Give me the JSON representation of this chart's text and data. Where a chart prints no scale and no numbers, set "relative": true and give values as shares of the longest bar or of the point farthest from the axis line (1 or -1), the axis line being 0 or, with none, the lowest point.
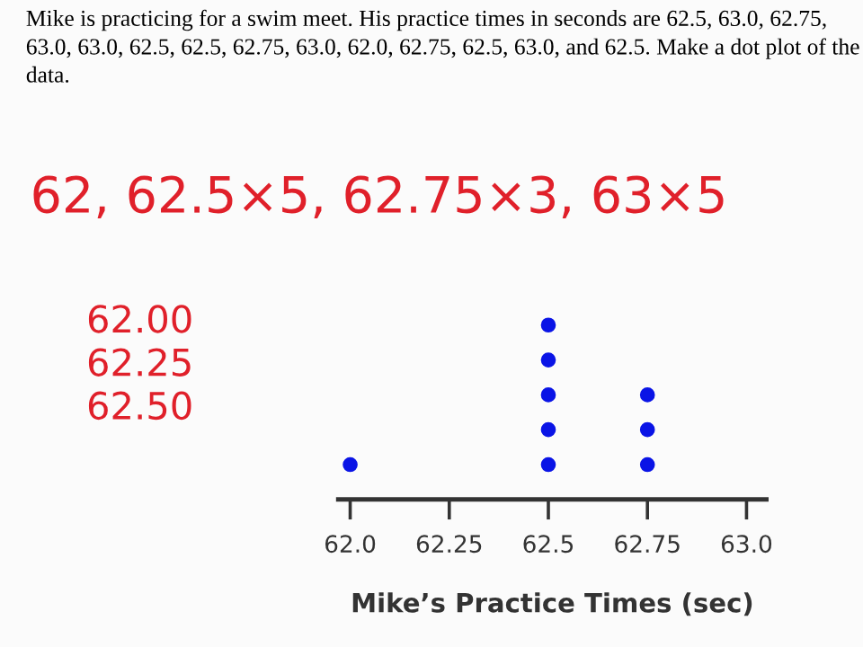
{
  "chart_data": {
    "type": "scatter",
    "relative": true,
    "title": "Mike is practicing for a swim meet. His practice times in seconds are 62.5, 63.0, 62.75, 63.0, 63.0, 62.5, 62.5, 62.75, 63.0, 62.0, 62.75, 62.5, 63.0, and 62.5. Make a dot plot of the data.",
    "xlabel": "Mike’s Practice Times (sec)",
    "x": [
      62.0,
      62.5,
      62.5,
      62.5,
      62.5,
      62.5,
      62.75,
      62.75,
      62.75
    ],
    "series": [
      {
        "color": "#0a14e6",
        "values": [
          0.2,
          0.2,
          0.4,
          0.6,
          0.8,
          1.0,
          0.2,
          0.4,
          0.6
        ]
      }
    ],
    "marker": "circle",
    "xlim": [
      61.97,
      63.05
    ],
    "xticks": [
      {
        "value": 62.0,
        "label": "62.0"
      },
      62.25,
      {
        "value": 62.5,
        "label": "62.5"
      },
      62.75,
      {
        "value": 63.0,
        "label": "63.0"
      }
    ],
    "grid": false,
    "legend": false,
    "annotations": [
      "62, 62.5×5, 62.75×3, 63×5",
      "62.00\n62.25\n62.50"
    ]
  }
}
